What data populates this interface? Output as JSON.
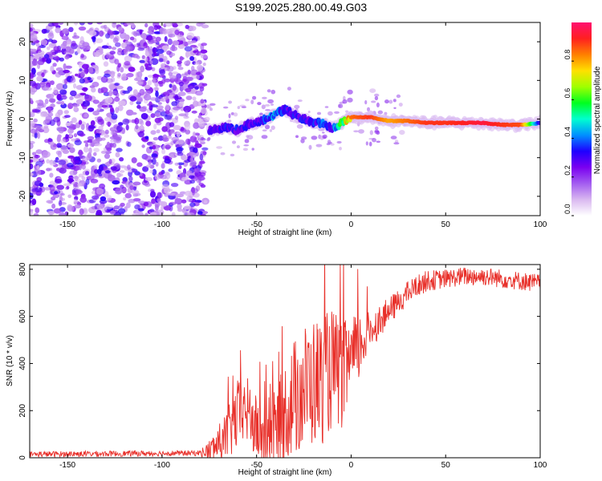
{
  "title": "S199.2025.280.00.49.G03",
  "chart_data": [
    {
      "type": "heatmap",
      "name": "spectrogram",
      "xlabel": "Height of straight line (km)",
      "ylabel": "Frequency (Hz)",
      "xlim": [
        -170,
        100
      ],
      "ylim": [
        -25,
        25
      ],
      "xticks": [
        -150,
        -100,
        -50,
        0,
        50,
        100
      ],
      "yticks": [
        -20,
        -10,
        0,
        10,
        20
      ],
      "noise_region_x": [
        -170,
        -80
      ],
      "ridge": {
        "x": [
          -75,
          -70,
          -65,
          -60,
          -55,
          -50,
          -45,
          -40,
          -35,
          -30,
          -25,
          -20,
          -15,
          -10,
          -5,
          0,
          10,
          20,
          30,
          40,
          50,
          60,
          70,
          80,
          90,
          100
        ],
        "y": [
          -3,
          -2.5,
          -2,
          -3,
          -1.5,
          -1,
          0,
          1.5,
          2.5,
          1,
          0,
          -1,
          -1,
          -2.5,
          -1,
          0.5,
          0.5,
          -0.5,
          -0.5,
          -1,
          -1,
          -1,
          -1,
          -1.5,
          -1.5,
          -1
        ],
        "amplitude": [
          0.25,
          0.3,
          0.3,
          0.3,
          0.3,
          0.3,
          0.35,
          0.4,
          0.3,
          0.3,
          0.3,
          0.3,
          0.35,
          0.3,
          0.55,
          0.85,
          0.9,
          0.8,
          0.85,
          0.9,
          0.9,
          0.92,
          0.95,
          0.9,
          0.88,
          0.3
        ]
      },
      "colorbar": {
        "label": "Normalized spectral amplitude",
        "range": [
          0,
          1
        ],
        "ticks": [
          "0.0",
          "0.2",
          "0.4",
          "0.6",
          "0.8"
        ],
        "tick_values": [
          0,
          0.2,
          0.4,
          0.6,
          0.8
        ],
        "colormap": [
          "#ffffff",
          "#d9b8f0",
          "#a35cf0",
          "#7a00f0",
          "#1e00ff",
          "#0090ff",
          "#00ffd0",
          "#00ff20",
          "#a0ff00",
          "#ffe000",
          "#ff8000",
          "#ff2020",
          "#ff1070"
        ]
      }
    },
    {
      "type": "line",
      "name": "snr",
      "xlabel": "Height of straight line (km)",
      "ylabel": "SNR (10 * v/v)",
      "xlim": [
        -170,
        100
      ],
      "ylim": [
        0,
        820
      ],
      "xticks": [
        -150,
        -100,
        -50,
        0,
        50,
        100
      ],
      "yticks": [
        0,
        200,
        400,
        600,
        800
      ],
      "color": "#e8302a",
      "trend": {
        "x": [
          -170,
          -80,
          -75,
          -70,
          -65,
          -60,
          -55,
          -50,
          -45,
          -40,
          -35,
          -30,
          -25,
          -20,
          -15,
          -10,
          -5,
          0,
          5,
          10,
          15,
          20,
          25,
          30,
          35,
          40,
          50,
          60,
          70,
          80,
          90,
          100
        ],
        "y": [
          15,
          20,
          30,
          60,
          100,
          180,
          200,
          120,
          80,
          130,
          200,
          250,
          300,
          320,
          330,
          380,
          350,
          400,
          480,
          540,
          580,
          620,
          660,
          700,
          730,
          750,
          760,
          770,
          770,
          760,
          750,
          740
        ]
      },
      "noise_amplitude": {
        "x": [
          -170,
          -80,
          -70,
          -60,
          -50,
          -40,
          -30,
          -20,
          -10,
          0,
          10,
          20,
          30,
          50,
          100
        ],
        "y": [
          12,
          12,
          80,
          150,
          140,
          160,
          260,
          280,
          260,
          200,
          80,
          60,
          50,
          40,
          40
        ]
      }
    }
  ]
}
